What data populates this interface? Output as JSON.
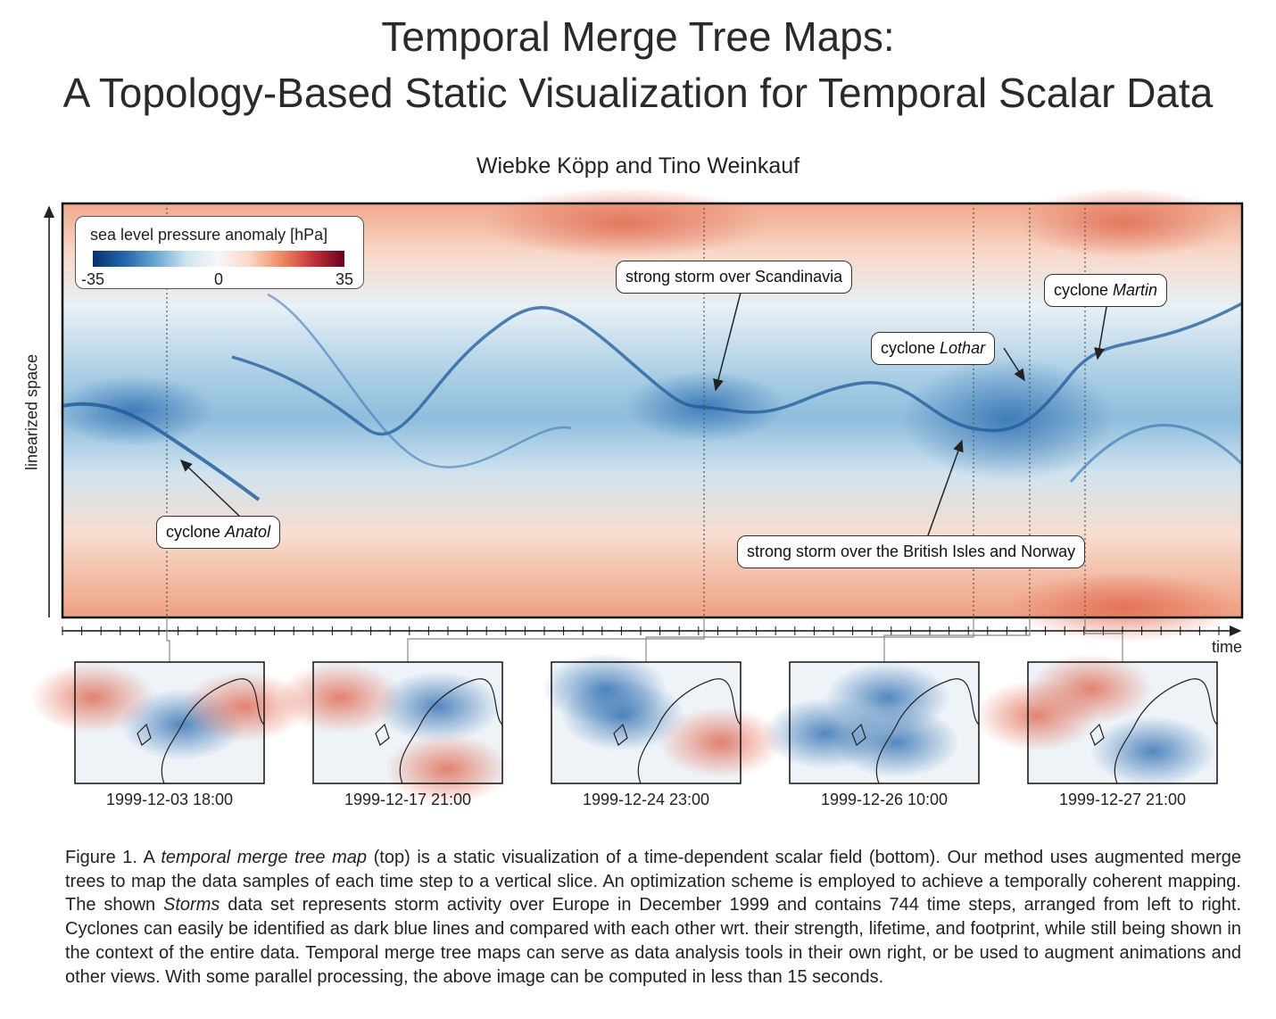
{
  "header": {
    "title_line1": "Temporal Merge Tree Maps:",
    "title_line2": "A Topology-Based Static Visualization for Temporal Scalar Data",
    "authors": "Wiebke Köpp and Tino Weinkauf"
  },
  "figure": {
    "y_axis_label": "linearized space",
    "x_axis_label": "time",
    "colorbar": {
      "label": "sea level pressure anomaly [hPa]",
      "lim": [
        -35,
        35
      ],
      "ticks": [
        -35,
        0,
        35
      ]
    },
    "annotations": [
      {
        "text": "strong storm over Scandinavia"
      },
      {
        "prefix": "cyclone",
        "name": "Martin"
      },
      {
        "prefix": "cyclone",
        "name": "Lothar"
      },
      {
        "prefix": "cyclone",
        "name": "Anatol"
      },
      {
        "text": "strong storm over the British Isles and Norway"
      }
    ],
    "snapshots": [
      "1999-12-03 18:00",
      "1999-12-17 21:00",
      "1999-12-24 23:00",
      "1999-12-26 10:00",
      "1999-12-27 21:00"
    ]
  },
  "caption": {
    "parts": [
      {
        "text": "Figure 1.  A ",
        "italic": false
      },
      {
        "text": "temporal merge tree map",
        "italic": true
      },
      {
        "text": " (top) is a static visualization of a time-dependent scalar field (bottom).  Our method uses augmented merge trees to map the data samples of each time step to a vertical slice. An optimization scheme is employed to achieve a temporally coherent mapping. The shown ",
        "italic": false
      },
      {
        "text": "Storms",
        "italic": true
      },
      {
        "text": " data set represents storm activity over Europe in December 1999 and contains 744 time steps, arranged from left to right. Cyclones can easily be identified as dark blue lines and compared with each other wrt. their strength, lifetime, and footprint, while still being shown in the context of the entire data. Temporal merge tree maps can serve as data analysis tools in their own right, or be used to augment animations and other views. With some parallel processing, the above image can be computed in less than 15 seconds.",
        "italic": false
      }
    ]
  }
}
